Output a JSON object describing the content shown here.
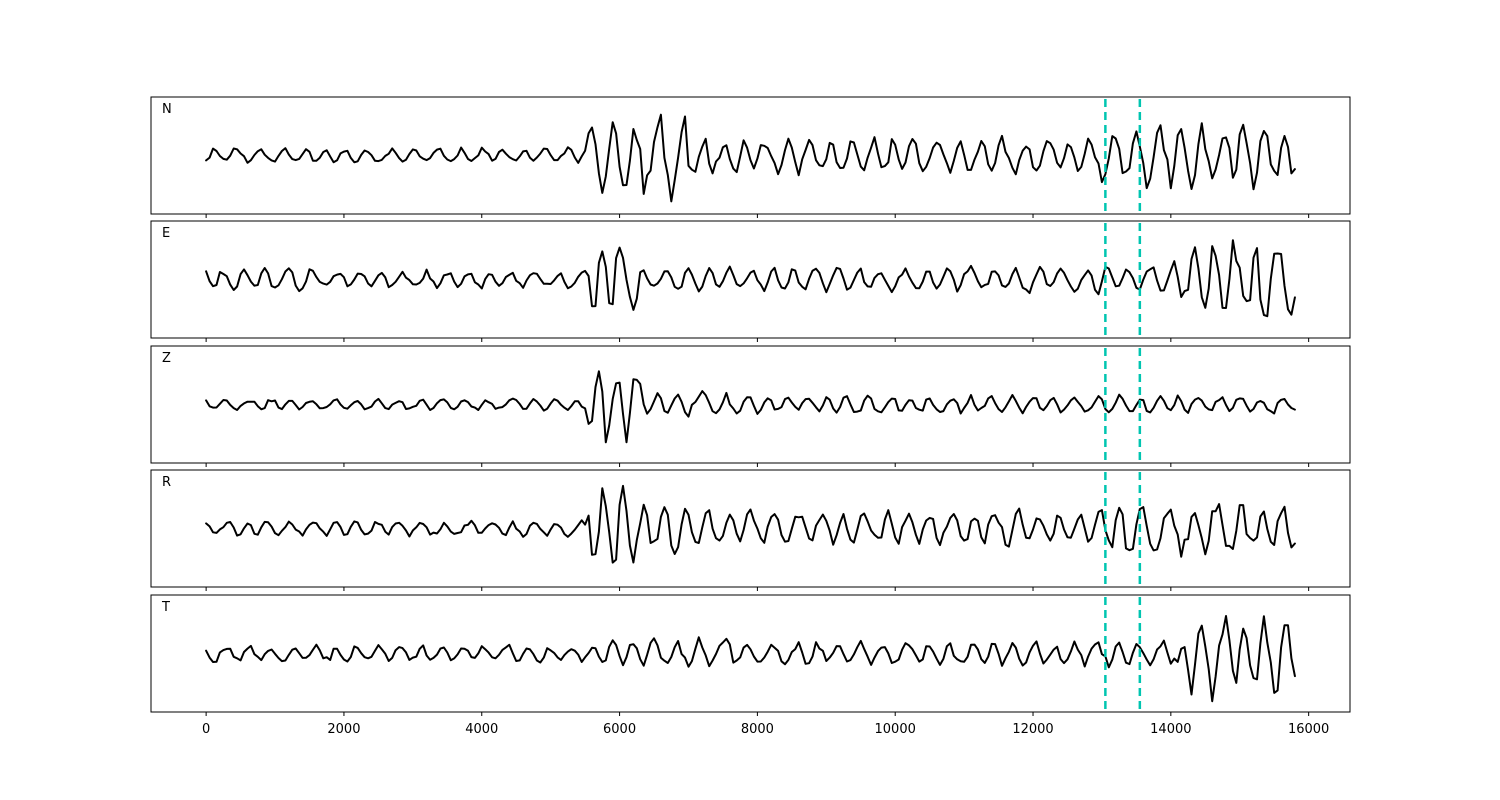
{
  "chart_data": {
    "type": "line",
    "title": "",
    "xlabel": "",
    "ylabel": "",
    "xlim": [
      -800,
      16600
    ],
    "xticks": [
      0,
      2000,
      4000,
      6000,
      8000,
      10000,
      12000,
      14000,
      16000
    ],
    "xtick_labels": [
      "0",
      "2000",
      "4000",
      "6000",
      "8000",
      "10000",
      "12000",
      "14000",
      "16000"
    ],
    "sample_range": [
      0,
      15800
    ],
    "shared_x": true,
    "grid": false,
    "legend": "none",
    "trace_color": "#000000",
    "pick_color": "#00c5b0",
    "picks": [
      13050,
      13550
    ],
    "panels": [
      {
        "label": "N",
        "segments": [
          {
            "x0": 0,
            "x1": 5500,
            "amp": 0.13
          },
          {
            "x0": 5500,
            "x1": 5600,
            "amp": 0.55
          },
          {
            "x0": 5600,
            "x1": 7000,
            "amp": 0.75
          },
          {
            "x0": 7000,
            "x1": 12900,
            "amp": 0.33
          },
          {
            "x0": 12900,
            "x1": 13600,
            "amp": 0.45
          },
          {
            "x0": 13600,
            "x1": 15800,
            "amp": 0.55
          }
        ]
      },
      {
        "label": "E",
        "segments": [
          {
            "x0": 0,
            "x1": 1500,
            "amp": 0.22
          },
          {
            "x0": 1500,
            "x1": 5500,
            "amp": 0.16
          },
          {
            "x0": 5500,
            "x1": 6300,
            "amp": 0.65
          },
          {
            "x0": 6300,
            "x1": 12900,
            "amp": 0.22
          },
          {
            "x0": 12900,
            "x1": 14200,
            "amp": 0.3
          },
          {
            "x0": 14200,
            "x1": 15800,
            "amp": 0.7
          }
        ]
      },
      {
        "label": "Z",
        "segments": [
          {
            "x0": 0,
            "x1": 5500,
            "amp": 0.1
          },
          {
            "x0": 5500,
            "x1": 6300,
            "amp": 0.7
          },
          {
            "x0": 6300,
            "x1": 8000,
            "amp": 0.2
          },
          {
            "x0": 8000,
            "x1": 15800,
            "amp": 0.15
          }
        ]
      },
      {
        "label": "R",
        "segments": [
          {
            "x0": 0,
            "x1": 5500,
            "amp": 0.14
          },
          {
            "x0": 5500,
            "x1": 6300,
            "amp": 0.75
          },
          {
            "x0": 6300,
            "x1": 7000,
            "amp": 0.5
          },
          {
            "x0": 7000,
            "x1": 12900,
            "amp": 0.3
          },
          {
            "x0": 12900,
            "x1": 15800,
            "amp": 0.45
          }
        ]
      },
      {
        "label": "T",
        "segments": [
          {
            "x0": 0,
            "x1": 5800,
            "amp": 0.15
          },
          {
            "x0": 5800,
            "x1": 7600,
            "amp": 0.28
          },
          {
            "x0": 7600,
            "x1": 14200,
            "amp": 0.22
          },
          {
            "x0": 14200,
            "x1": 15800,
            "amp": 0.8
          }
        ]
      }
    ]
  }
}
